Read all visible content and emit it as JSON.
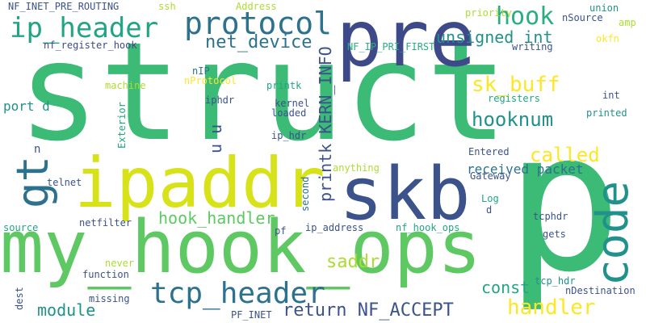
{
  "palette": {
    "dark_blue": "#3b528b",
    "teal": "#2c728e",
    "cyan": "#21918c",
    "green": "#28ae80",
    "bright_green": "#5ec962",
    "yellow_green": "#addc30",
    "yellow": "#fde725",
    "mid_green": "#3bbb75"
  },
  "words": [
    {
      "text": "struct"
    },
    {
      "text": "p"
    },
    {
      "text": "my_hook_ops"
    },
    {
      "text": "ipaddr"
    },
    {
      "text": "skb"
    },
    {
      "text": "pre"
    },
    {
      "text": "code"
    },
    {
      "text": "gt"
    },
    {
      "text": "tcp_header"
    },
    {
      "text": "protocol"
    },
    {
      "text": "ip_header"
    },
    {
      "text": "hook"
    },
    {
      "text": "net_device"
    },
    {
      "text": "unsigned int"
    },
    {
      "text": "sk_buff"
    },
    {
      "text": "hooknum"
    },
    {
      "text": "printk KERN_INFO"
    },
    {
      "text": "return NF_ACCEPT"
    },
    {
      "text": "handler"
    },
    {
      "text": "called"
    },
    {
      "text": "received packet"
    },
    {
      "text": "hook_handler"
    },
    {
      "text": "saddr"
    },
    {
      "text": "const"
    },
    {
      "text": "module"
    },
    {
      "text": "port d"
    },
    {
      "text": "u u"
    },
    {
      "text": "NF_INET_PRE_ROUTING"
    },
    {
      "text": "nf_register_hook"
    },
    {
      "text": "NF_IP_PRI_FIRST"
    },
    {
      "text": "ssh"
    },
    {
      "text": "Address"
    },
    {
      "text": "priority"
    },
    {
      "text": "nSource"
    },
    {
      "text": "union"
    },
    {
      "text": "amp"
    },
    {
      "text": "writing"
    },
    {
      "text": "okfn"
    },
    {
      "text": "nIP"
    },
    {
      "text": "nProtocol"
    },
    {
      "text": "machine"
    },
    {
      "text": "printk"
    },
    {
      "text": "iphdr"
    },
    {
      "text": "Exterior"
    },
    {
      "text": "kernel"
    },
    {
      "text": "loaded"
    },
    {
      "text": "ip_hdr"
    },
    {
      "text": "registers"
    },
    {
      "text": "int"
    },
    {
      "text": "printed"
    },
    {
      "text": "n"
    },
    {
      "text": "Entered"
    },
    {
      "text": "anything"
    },
    {
      "text": "second"
    },
    {
      "text": "Gateway"
    },
    {
      "text": "telnet"
    },
    {
      "text": "Log"
    },
    {
      "text": "d"
    },
    {
      "text": "tcphdr"
    },
    {
      "text": "netfilter"
    },
    {
      "text": "source"
    },
    {
      "text": "pf"
    },
    {
      "text": "ip_address"
    },
    {
      "text": "nf_hook_ops"
    },
    {
      "text": "gets"
    },
    {
      "text": "never"
    },
    {
      "text": "function"
    },
    {
      "text": "tcp_hdr"
    },
    {
      "text": "dest"
    },
    {
      "text": "missing"
    },
    {
      "text": "PF_INET"
    },
    {
      "text": "nDestination"
    }
  ]
}
